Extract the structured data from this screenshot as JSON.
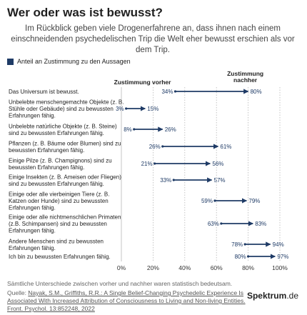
{
  "title": "Wer oder was ist bewusst?",
  "subtitle": "Im Rückblick geben viele Drogenerfahrene an, dass ihnen nach einem einschneidenden psychedelischen Trip die Welt eher bewusst erschien als vor dem Trip.",
  "legend_label": "Anteil an Zustimmung zu den Aussagen",
  "footer_note": "Sämtliche Unterschiede zwischen vorher und nachher waren statistisch bedeutsam.",
  "source_prefix": "Quelle: ",
  "source_link": "Nayak, S.M., Griffiths, R.R.: A Single Belief-Changing Psychedelic Experience Is Associated With Increased Attribution of Consciousness to Living and Non-living Entities. Front. Psychol. 13:852248, 2022",
  "brand": "Spektrum",
  "brand_tld": ".de",
  "colors": {
    "arrow": "#1f3b66",
    "grid": "#b8b8b8",
    "label": "#1f3b66"
  },
  "chart_data": {
    "type": "arrow-dumbbell",
    "header_before": "Zustimmung vorher",
    "header_after_lines": [
      "Zustimmung",
      "nachher"
    ],
    "xlim": [
      0,
      100
    ],
    "xticks": [
      "0%",
      "20%",
      "40%",
      "60%",
      "80%",
      "100%"
    ],
    "categories": [
      [
        "Das Universum ist bewusst."
      ],
      [
        "Unbelebte menschengemachte Objekte (z. B.",
        "Stühle oder Gebäude) sind zu bewussten",
        "Erfahrungen fähig."
      ],
      [
        "Unbelebte natürliche Objekte (z. B. Steine)",
        "sind zu bewussten Erfahrungen fähig."
      ],
      [
        "Pflanzen (z. B. Bäume oder Blumen) sind zu",
        "bewussten Erfahrungen fähig."
      ],
      [
        "Einige Pilze (z. B. Champignons) sind zu",
        "bewussten Erfahrungen fähig."
      ],
      [
        "Einige Insekten (z. B. Ameisen oder Fliegen)",
        "sind zu bewussten Erfahrungen fähig."
      ],
      [
        "Einige oder alle vierbeinigen Tiere (z. B.",
        "Katzen oder Hunde) sind zu bewussten",
        "Erfahrungen fähig."
      ],
      [
        "Einige oder alle nichtmenschlichen Primaten",
        "(z.B. Schimpansen) sind zu bewussten",
        "Erfahrungen fähig."
      ],
      [
        "Andere Menschen sind zu bewussten",
        "Erfahrungen fähig."
      ],
      [
        "Ich bin zu bewussten Erfahrungen fähig."
      ]
    ],
    "series": [
      {
        "name": "Zustimmung vorher",
        "values": [
          34,
          3,
          8,
          26,
          21,
          33,
          59,
          63,
          78,
          80
        ]
      },
      {
        "name": "Zustimmung nachher",
        "values": [
          80,
          15,
          26,
          61,
          56,
          57,
          79,
          83,
          94,
          97
        ]
      }
    ],
    "value_labels_before": [
      "34%",
      "3%",
      "8%",
      "26%",
      "21%",
      "33%",
      "59%",
      "63%",
      "78%",
      "80%"
    ],
    "value_labels_after": [
      "80%",
      "15%",
      "26%",
      "61%",
      "56%",
      "57%",
      "79%",
      "83%",
      "94%",
      "97%"
    ]
  }
}
